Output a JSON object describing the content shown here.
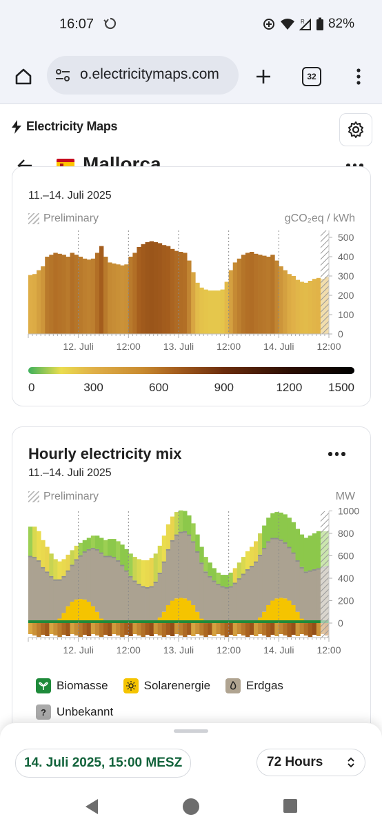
{
  "status": {
    "time": "16:07",
    "battery": "82%"
  },
  "browser": {
    "url": "o.electricitymaps.com",
    "tab_count": "32"
  },
  "app": {
    "brand": "Electricity Maps"
  },
  "zone": {
    "name": "Mallorca"
  },
  "carbon_card": {
    "date_range": "11.–14. Juli 2025",
    "preliminary": "Preliminary",
    "unit": "gCO₂eq / kWh",
    "y_ticks": [
      "500",
      "400",
      "300",
      "200",
      "100",
      "0"
    ],
    "x_ticks": [
      "12. Juli",
      "12:00",
      "13. Juli",
      "12:00",
      "14. Juli",
      "12:00"
    ],
    "scale_labels": [
      "0",
      "300",
      "600",
      "900",
      "1200",
      "1500"
    ]
  },
  "mix_card": {
    "title": "Hourly electricity mix",
    "date_range": "11.–14. Juli 2025",
    "preliminary": "Preliminary",
    "unit": "MW",
    "y_ticks": [
      "1000",
      "800",
      "600",
      "400",
      "200",
      "0"
    ],
    "x_ticks": [
      "12. Juli",
      "12:00",
      "13. Juli",
      "12:00",
      "14. Juli",
      "12:00"
    ],
    "legend": [
      {
        "label": "Biomasse",
        "icon": "leaf-icon",
        "color": "#1e8a3a"
      },
      {
        "label": "Solarenergie",
        "icon": "sun-icon",
        "color": "#f5c400"
      },
      {
        "label": "Erdgas",
        "icon": "flame-icon",
        "color": "#b0a491"
      },
      {
        "label": "Unbekannt",
        "icon": "question-icon",
        "color": "#a9a9a9"
      }
    ]
  },
  "footer": {
    "datetime": "14. Juli 2025, 15:00 MESZ",
    "range": "72 Hours"
  },
  "colors": {
    "accent": "#12633b",
    "low_carbon": "#3fb15c",
    "mid_carbon": "#c88a2f",
    "high_carbon": "#000000"
  },
  "chart_data": [
    {
      "type": "bar",
      "title": "",
      "ylabel": "gCO₂eq / kWh",
      "ylim": [
        0,
        520
      ],
      "x_tick_labels": [
        "12. Juli",
        "12:00",
        "13. Juli",
        "12:00",
        "14. Juli",
        "12:00"
      ],
      "values": [
        305,
        310,
        330,
        350,
        400,
        410,
        420,
        415,
        410,
        400,
        420,
        410,
        400,
        390,
        385,
        390,
        420,
        455,
        400,
        370,
        365,
        360,
        355,
        360,
        400,
        420,
        450,
        465,
        475,
        480,
        475,
        470,
        460,
        455,
        440,
        430,
        425,
        420,
        380,
        320,
        265,
        240,
        230,
        225,
        225,
        225,
        230,
        270,
        330,
        370,
        390,
        410,
        420,
        425,
        415,
        410,
        405,
        400,
        410,
        380,
        350,
        330,
        310,
        300,
        280,
        270,
        265,
        275,
        285,
        290,
        285,
        295
      ]
    },
    {
      "type": "area",
      "title": "Hourly electricity mix",
      "ylabel": "MW",
      "ylim": [
        -100,
        1050
      ],
      "x_tick_labels": [
        "12. Juli",
        "12:00",
        "13. Juli",
        "12:00",
        "14. Juli",
        "12:00"
      ],
      "series": [
        {
          "name": "Biomasse",
          "values": [
            12,
            12,
            12,
            12,
            12,
            12,
            12,
            12,
            12,
            12,
            12,
            12,
            12,
            12,
            12,
            12,
            12,
            12,
            12,
            12,
            12,
            12,
            12,
            12,
            12,
            12,
            12,
            12,
            12,
            12,
            12,
            12,
            12,
            12,
            12,
            12,
            12,
            12,
            12,
            12,
            12,
            12,
            12,
            12,
            12,
            12,
            12,
            12,
            12,
            12,
            12,
            12,
            12,
            12,
            12,
            12,
            12,
            12,
            12,
            12,
            12,
            12,
            12,
            12,
            12,
            12,
            12,
            12,
            12,
            12,
            12,
            12
          ]
        },
        {
          "name": "Solarenergie",
          "values": [
            0,
            0,
            0,
            0,
            0,
            0,
            10,
            40,
            90,
            150,
            190,
            210,
            215,
            210,
            190,
            150,
            100,
            40,
            0,
            0,
            0,
            0,
            0,
            0,
            0,
            0,
            0,
            0,
            0,
            0,
            10,
            50,
            100,
            160,
            200,
            220,
            225,
            220,
            200,
            160,
            100,
            40,
            0,
            0,
            0,
            0,
            0,
            0,
            0,
            0,
            0,
            0,
            0,
            0,
            10,
            50,
            100,
            160,
            200,
            220,
            225,
            220,
            200,
            160,
            100,
            40,
            0,
            0,
            0,
            0,
            0,
            0
          ]
        },
        {
          "name": "Erdgas",
          "values": [
            600,
            590,
            560,
            500,
            460,
            420,
            380,
            350,
            330,
            320,
            330,
            360,
            390,
            430,
            470,
            520,
            560,
            590,
            600,
            600,
            590,
            560,
            520,
            470,
            420,
            380,
            350,
            330,
            320,
            330,
            360,
            400,
            450,
            500,
            540,
            570,
            590,
            600,
            590,
            570,
            540,
            500,
            460,
            420,
            380,
            350,
            330,
            320,
            330,
            360,
            400,
            440,
            480,
            510,
            540,
            560,
            570,
            570,
            560,
            540,
            520,
            500,
            480,
            470,
            460,
            460,
            460,
            470,
            480,
            490,
            500,
            510
          ]
        },
        {
          "name": "Unbekannt",
          "values": [
            260,
            270,
            260,
            240,
            220,
            200,
            180,
            160,
            150,
            140,
            130,
            120,
            110,
            100,
            100,
            110,
            120,
            130,
            140,
            150,
            160,
            170,
            180,
            190,
            200,
            210,
            220,
            230,
            240,
            250,
            250,
            240,
            230,
            220,
            210,
            200,
            190,
            180,
            170,
            160,
            150,
            140,
            130,
            120,
            110,
            100,
            100,
            110,
            120,
            130,
            140,
            150,
            160,
            170,
            180,
            190,
            200,
            210,
            220,
            230,
            240,
            250,
            260,
            270,
            280,
            290,
            300,
            310,
            320,
            330,
            320,
            310
          ]
        }
      ]
    }
  ]
}
